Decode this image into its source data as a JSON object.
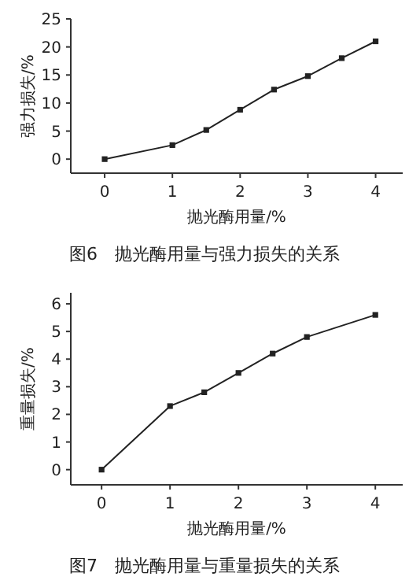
{
  "chart_data": [
    {
      "type": "line",
      "xlabel": "抛光酶用量/%",
      "ylabel": "强力损失/%",
      "annotations": [
        "图6　抛光酶用量与强力损失的关系"
      ],
      "x": [
        0,
        1,
        1.5,
        2,
        2.5,
        3,
        3.5,
        4
      ],
      "series": [
        {
          "color": "#222222",
          "values": [
            0,
            2.5,
            5.2,
            8.8,
            12.4,
            14.8,
            18,
            21
          ]
        }
      ],
      "xlim": [
        -0.5,
        4.4
      ],
      "xticks": [
        0,
        1,
        2,
        3,
        4
      ],
      "ylim": [
        -2.5,
        25
      ],
      "yticks": [
        0,
        5,
        10,
        15,
        20,
        25
      ],
      "marker": "square",
      "line_style": "solid",
      "grid": false
    },
    {
      "type": "line",
      "xlabel": "抛光酶用量/%",
      "ylabel": "重量损失/%",
      "annotations": [
        "图7　抛光酶用量与重量损失的关系"
      ],
      "x": [
        0,
        1,
        1.5,
        2,
        2.5,
        3,
        4
      ],
      "series": [
        {
          "color": "#222222",
          "values": [
            0,
            2.3,
            2.8,
            3.5,
            4.2,
            4.8,
            5.6
          ]
        }
      ],
      "xlim": [
        -0.45,
        4.4
      ],
      "xticks": [
        0,
        1,
        2,
        3,
        4
      ],
      "ylim": [
        -0.55,
        6.4
      ],
      "yticks": [
        0,
        1,
        2,
        3,
        4,
        5,
        6
      ],
      "marker": "square",
      "line_style": "solid",
      "grid": false
    }
  ]
}
